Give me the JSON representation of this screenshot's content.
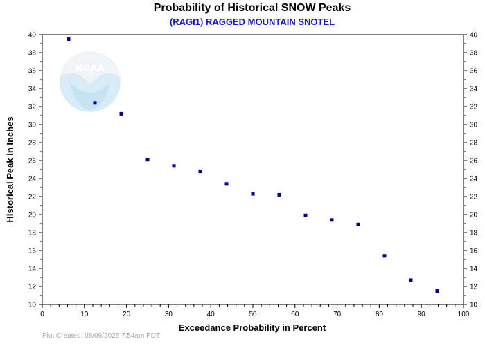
{
  "chart_data": {
    "type": "scatter",
    "title": "Probability of Historical SNOW Peaks",
    "subtitle": "(RAGI1) RAGGED MOUNTAIN SNOTEL",
    "xlabel": "Exceedance Probability in Percent",
    "ylabel": "Historical Peak in Inches",
    "xlim": [
      0,
      100
    ],
    "ylim": [
      10,
      40
    ],
    "x_ticks": [
      0,
      10,
      20,
      30,
      40,
      50,
      60,
      70,
      80,
      90,
      100
    ],
    "y_ticks": [
      10,
      12,
      14,
      16,
      18,
      20,
      22,
      24,
      26,
      28,
      30,
      32,
      34,
      36,
      38,
      40
    ],
    "grid": false,
    "marker_color": "#00008b",
    "points": [
      {
        "x": 6.25,
        "y": 39.5
      },
      {
        "x": 12.5,
        "y": 32.4
      },
      {
        "x": 18.75,
        "y": 31.2
      },
      {
        "x": 25.0,
        "y": 26.1
      },
      {
        "x": 31.25,
        "y": 25.4
      },
      {
        "x": 37.5,
        "y": 24.8
      },
      {
        "x": 43.75,
        "y": 23.4
      },
      {
        "x": 50.0,
        "y": 22.3
      },
      {
        "x": 56.25,
        "y": 22.2
      },
      {
        "x": 62.5,
        "y": 19.9
      },
      {
        "x": 68.75,
        "y": 19.4
      },
      {
        "x": 75.0,
        "y": 18.9
      },
      {
        "x": 81.25,
        "y": 15.4
      },
      {
        "x": 87.5,
        "y": 12.7
      },
      {
        "x": 93.75,
        "y": 11.5
      }
    ]
  },
  "footer": "Plot Created: 05/09/2025 7:54am PDT",
  "logo": {
    "text": "NOAA",
    "icon": "noaa-logo-icon"
  }
}
